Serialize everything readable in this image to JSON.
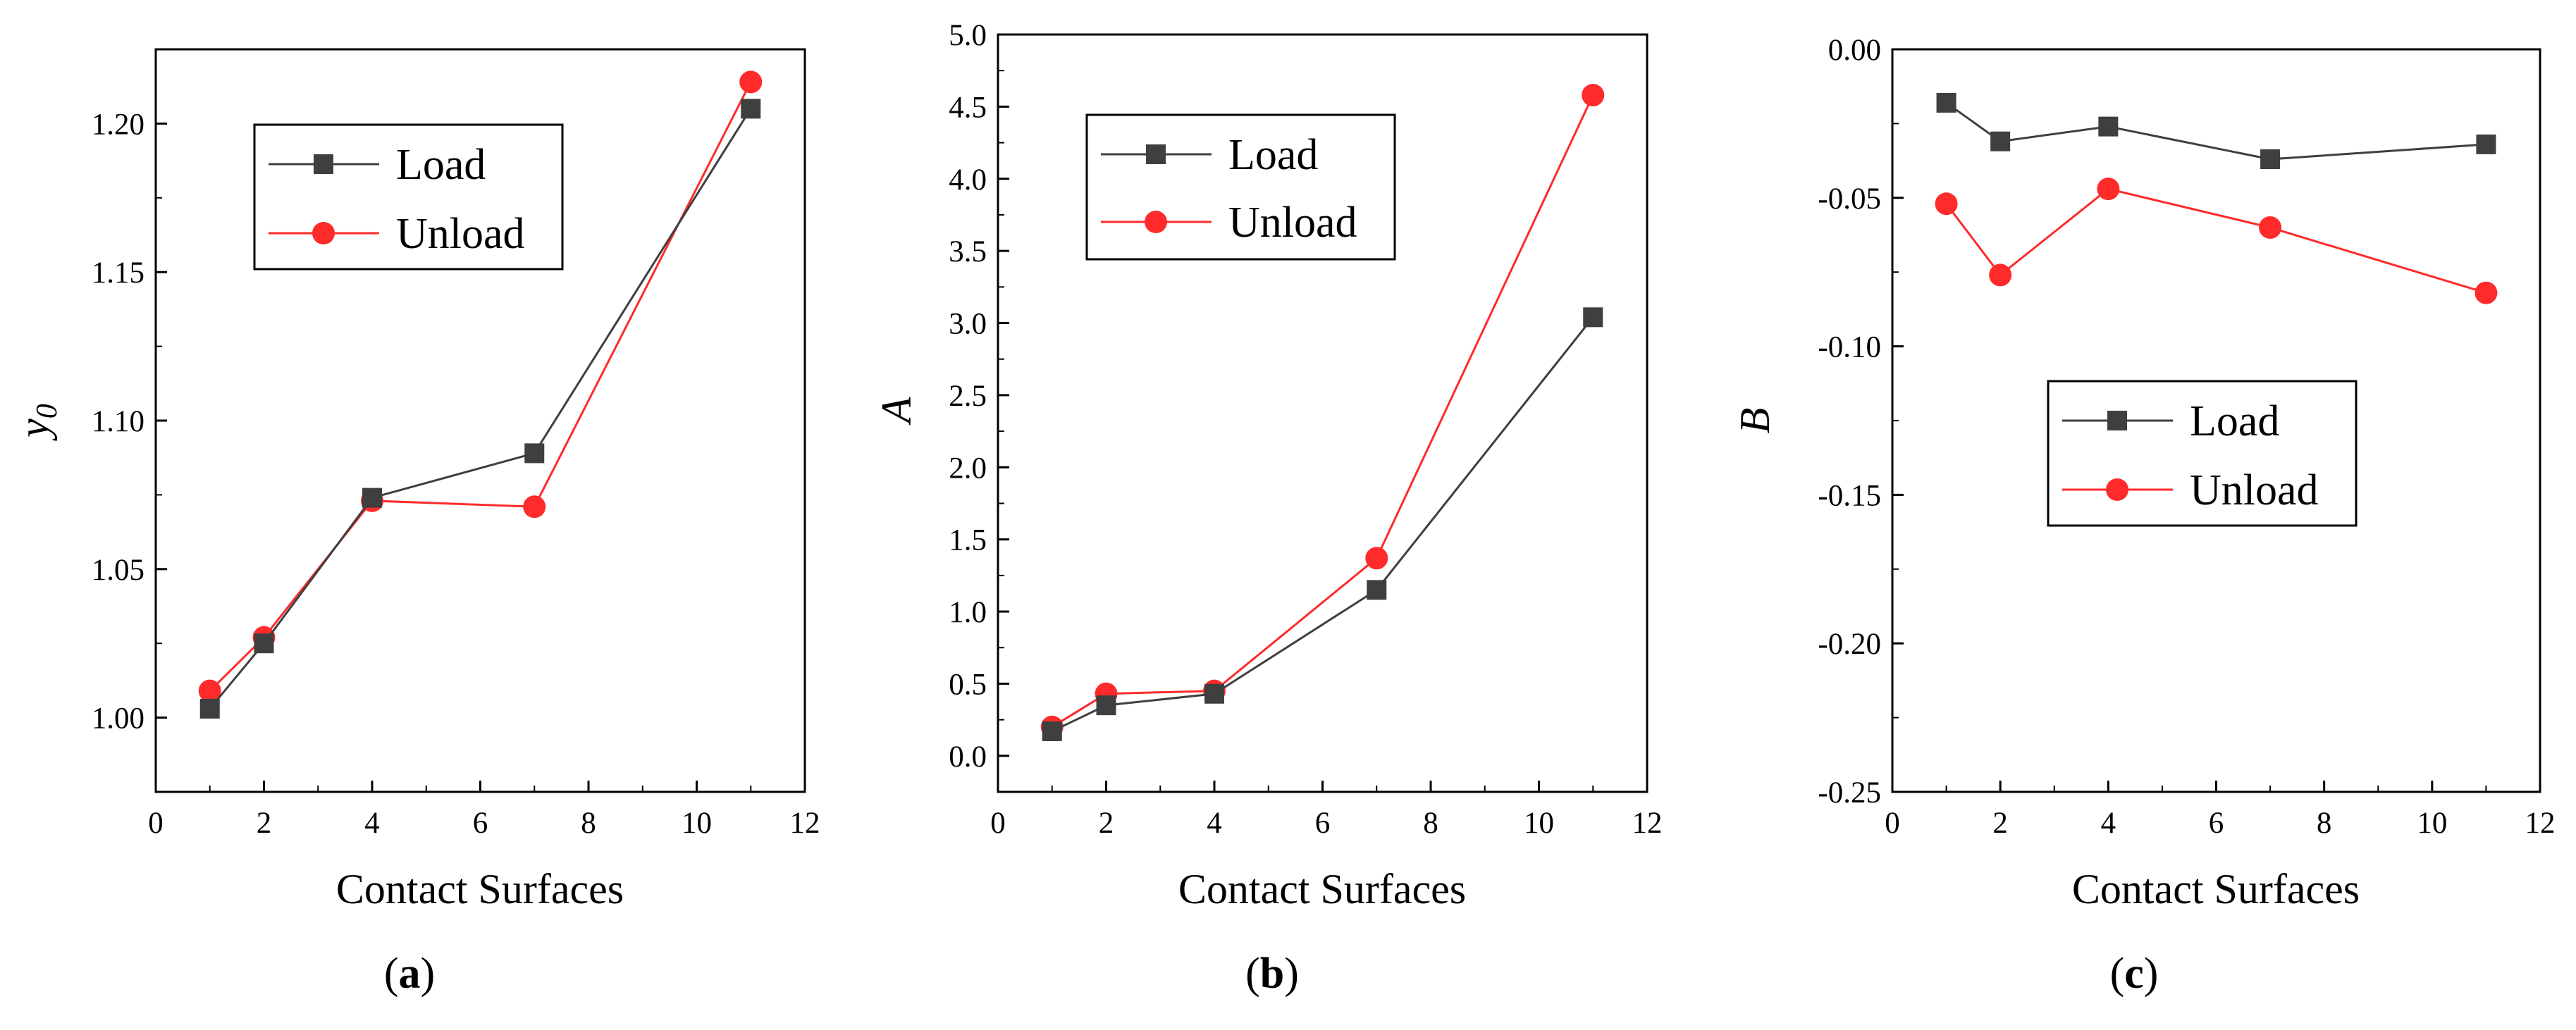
{
  "figure": {
    "captions": [
      {
        "open": "(",
        "letter": "a",
        "close": ")"
      },
      {
        "open": "(",
        "letter": "b",
        "close": ")"
      },
      {
        "open": "(",
        "letter": "c",
        "close": ")"
      }
    ]
  },
  "colors": {
    "load": "#3f3f3f",
    "unload": "#ff2a2a",
    "axis": "#000000"
  },
  "chart_data": [
    {
      "type": "line",
      "panel": "a",
      "xlabel": "Contact Surfaces",
      "ylabel": "y",
      "ylabel_subscript": "0",
      "xlim": [
        0,
        12
      ],
      "ylim": [
        0.975,
        1.225
      ],
      "xticks": [
        0,
        2,
        4,
        6,
        8,
        10,
        12
      ],
      "yticks": [
        "1.00",
        "1.05",
        "1.10",
        "1.15",
        "1.20"
      ],
      "legend_position": "upper-left",
      "series": [
        {
          "name": "Load",
          "marker": "square",
          "x": [
            1,
            2,
            4,
            7,
            11
          ],
          "y": [
            1.003,
            1.025,
            1.074,
            1.089,
            1.205
          ]
        },
        {
          "name": "Unload",
          "marker": "circle",
          "x": [
            1,
            2,
            4,
            7,
            11
          ],
          "y": [
            1.009,
            1.027,
            1.073,
            1.071,
            1.214
          ]
        }
      ]
    },
    {
      "type": "line",
      "panel": "b",
      "xlabel": "Contact Surfaces",
      "ylabel": "A",
      "xlim": [
        0,
        12
      ],
      "ylim": [
        -0.25,
        5.0
      ],
      "xticks": [
        0,
        2,
        4,
        6,
        8,
        10,
        12
      ],
      "yticks": [
        "0.0",
        "0.5",
        "1.0",
        "1.5",
        "2.0",
        "2.5",
        "3.0",
        "3.5",
        "4.0",
        "4.5",
        "5.0"
      ],
      "legend_position": "upper-left",
      "series": [
        {
          "name": "Load",
          "marker": "square",
          "x": [
            1,
            2,
            4,
            7,
            11
          ],
          "y": [
            0.17,
            0.35,
            0.43,
            1.15,
            3.04
          ]
        },
        {
          "name": "Unload",
          "marker": "circle",
          "x": [
            1,
            2,
            4,
            7,
            11
          ],
          "y": [
            0.2,
            0.43,
            0.45,
            1.37,
            4.58
          ]
        }
      ]
    },
    {
      "type": "line",
      "panel": "c",
      "xlabel": "Contact Surfaces",
      "ylabel": "B",
      "xlim": [
        0,
        12
      ],
      "ylim": [
        -0.25,
        0.0
      ],
      "xticks": [
        0,
        2,
        4,
        6,
        8,
        10,
        12
      ],
      "yticks": [
        "-0.25",
        "-0.20",
        "-0.15",
        "-0.10",
        "-0.05",
        "0.00"
      ],
      "legend_position": "center",
      "series": [
        {
          "name": "Load",
          "marker": "square",
          "x": [
            1,
            2,
            4,
            7,
            11
          ],
          "y": [
            -0.018,
            -0.031,
            -0.026,
            -0.037,
            -0.032
          ]
        },
        {
          "name": "Unload",
          "marker": "circle",
          "x": [
            1,
            2,
            4,
            7,
            11
          ],
          "y": [
            -0.052,
            -0.076,
            -0.047,
            -0.06,
            -0.082
          ]
        }
      ]
    }
  ]
}
